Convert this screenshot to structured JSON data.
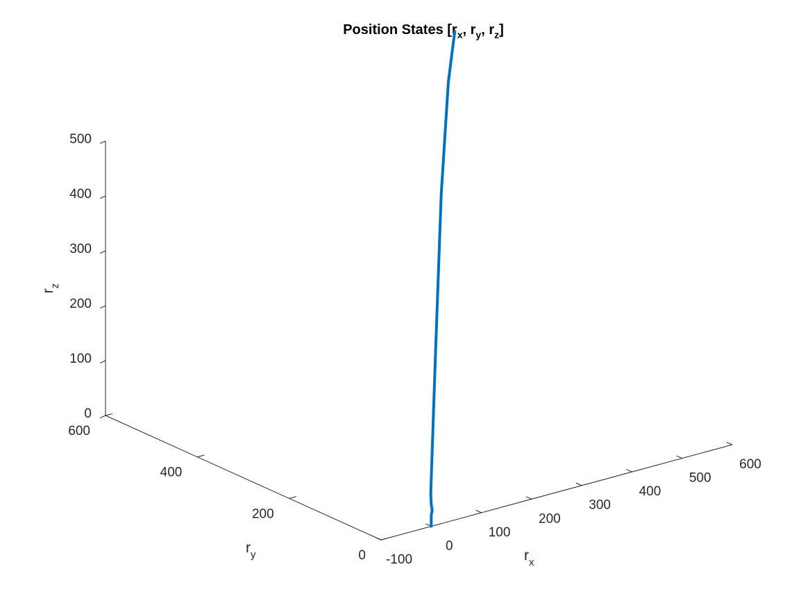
{
  "chart_data": {
    "type": "line",
    "projection": "3d",
    "title": {
      "main": "Position States [r",
      "sub_x": "x",
      "sep1": ", r",
      "sub_y": "y",
      "sep2": ", r",
      "sub_z": "z",
      "end": "]"
    },
    "xlabel": {
      "base": "r",
      "sub": "x"
    },
    "ylabel": {
      "base": "r",
      "sub": "y"
    },
    "zlabel": {
      "base": "r",
      "sub": "z"
    },
    "xlim": [
      -100,
      600
    ],
    "ylim": [
      0,
      600
    ],
    "zlim": [
      0,
      500
    ],
    "xticks": [
      "-100",
      "0",
      "100",
      "200",
      "300",
      "400",
      "500",
      "600"
    ],
    "yticks": [
      "0",
      "200",
      "400",
      "600"
    ],
    "zticks": [
      "0",
      "100",
      "200",
      "300",
      "400",
      "500"
    ],
    "grid": false,
    "series": [
      {
        "color": "#0072BD",
        "x": [
          0,
          0,
          0,
          2,
          0,
          -1,
          8,
          20,
          34,
          44,
          47
        ],
        "y": [
          0,
          0,
          0,
          0,
          0,
          0,
          0,
          0,
          0,
          0,
          0
        ],
        "z": [
          0,
          12,
          20,
          28,
          40,
          60,
          300,
          600,
          800,
          870,
          890
        ]
      }
    ]
  }
}
